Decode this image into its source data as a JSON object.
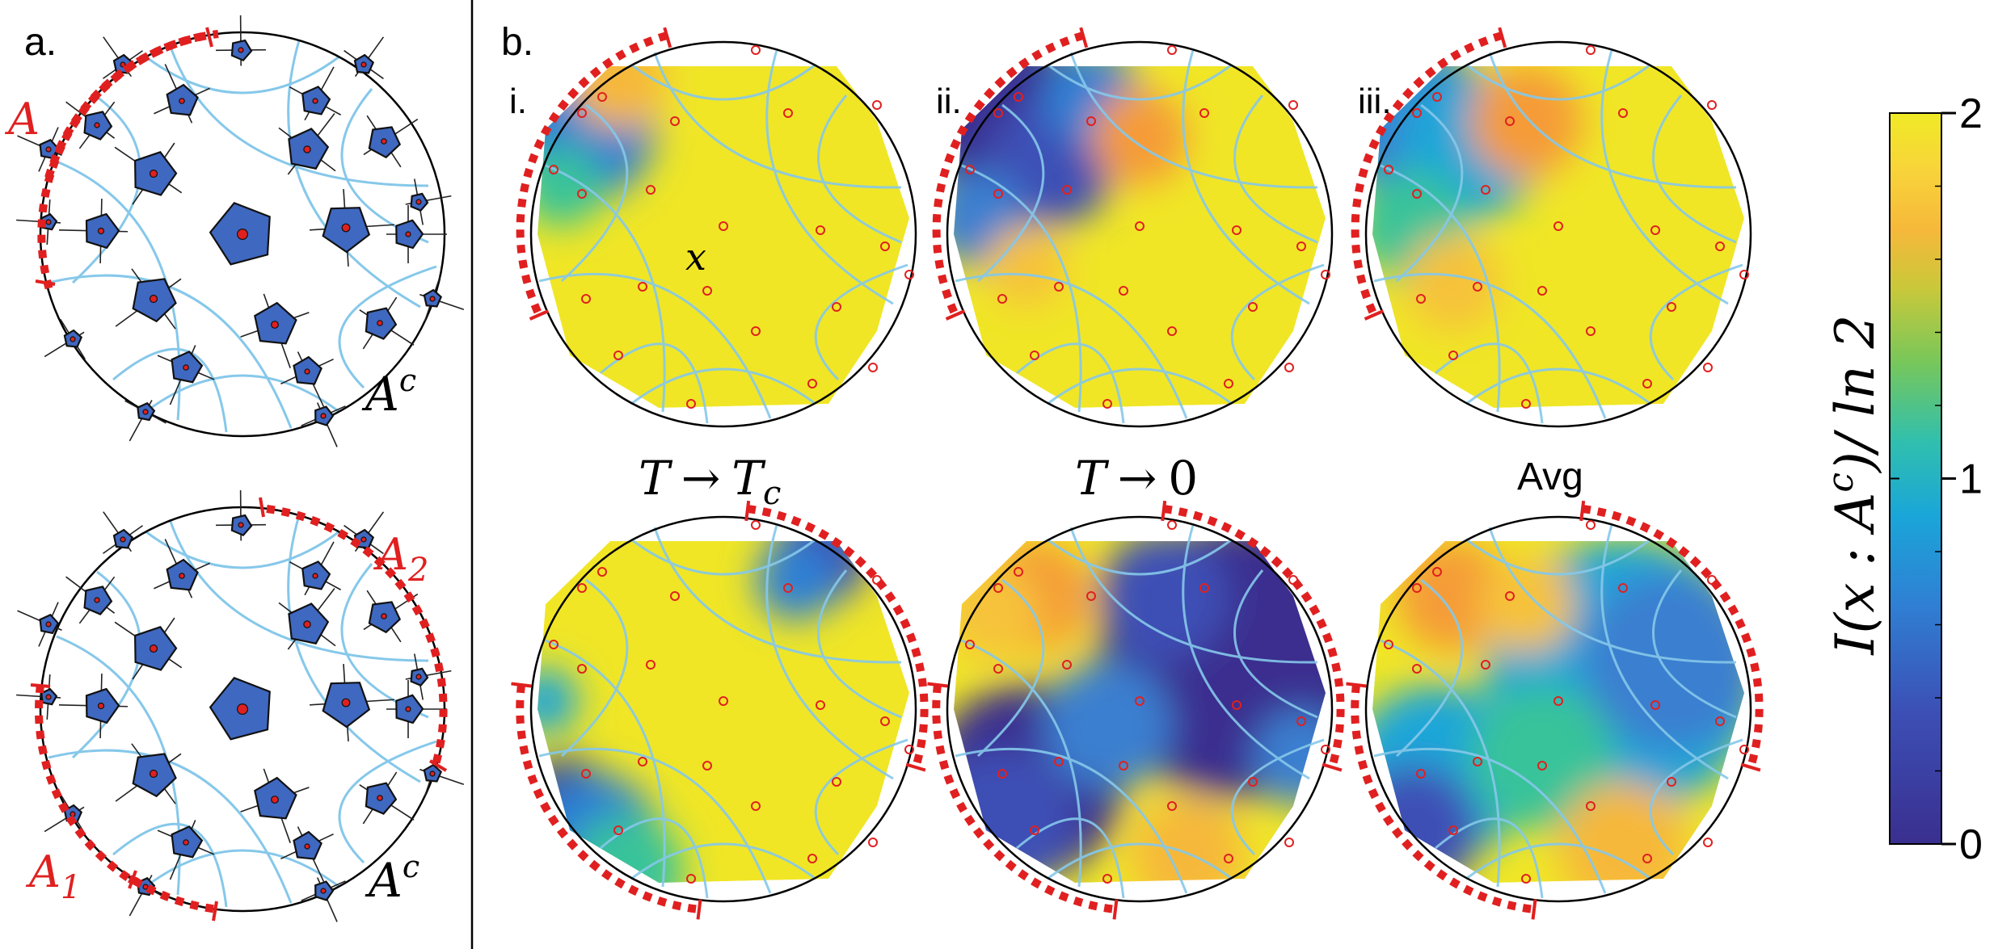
{
  "panel_a": {
    "label": "a.",
    "top": {
      "region_label": "A",
      "complement_label": "A",
      "complement_sup": "c"
    },
    "bottom": {
      "region1_label": "A",
      "region1_sub": "1",
      "region2_label": "A",
      "region2_sub": "2",
      "complement_label": "A",
      "complement_sup": "c"
    }
  },
  "panel_b": {
    "label": "b.",
    "sublabels": [
      "i.",
      "ii.",
      "iii."
    ],
    "x_label": "x",
    "captions": {
      "first_left": "T",
      "first_arrow": "→",
      "first_right": "T",
      "first_sub": "c",
      "second_left": "T",
      "second_arrow": "→",
      "second_right": "0",
      "third": "Avg"
    }
  },
  "colorbar": {
    "label": "I(x : A",
    "label_sup": "c",
    "label_tail": ")/ ln 2",
    "ticks": [
      "2",
      "1",
      "0"
    ],
    "values": [
      2,
      1,
      0
    ],
    "stops": [
      "#f0e626",
      "#f6c23a",
      "#f59b37",
      "#b7cf2c",
      "#38c39a",
      "#1aa6d8",
      "#3a7fd0",
      "#3c4fb5",
      "#3a2f8f"
    ]
  },
  "colors": {
    "boundary_region": "#e02020",
    "node_fill": "#3f68c0",
    "geodesic": "#86c8ea",
    "sample_point": "#e02020"
  }
}
